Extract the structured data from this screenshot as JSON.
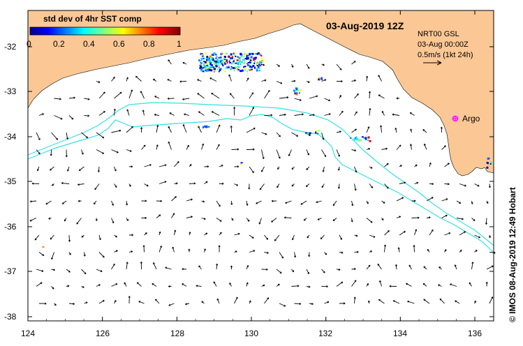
{
  "map": {
    "date_label": "03-Aug-2019 12Z",
    "colorbar_title": "std dev of 4hr SST comp",
    "colorbar_ticks": [
      "0",
      "0.2",
      "0.4",
      "0.6",
      "0.8",
      "1"
    ],
    "info_lines": [
      "NRT00 GSL",
      "03-Aug 00:00Z",
      "0.5m/s (1kt 24h)"
    ],
    "argo_label": "Argo",
    "credit": "© IMOS 08-Aug-2019 12:49 Hobart",
    "x_ticks": [
      "124",
      "126",
      "128",
      "130",
      "132",
      "134",
      "136"
    ],
    "y_ticks": [
      "-32",
      "-33",
      "-34",
      "-35",
      "-36",
      "-37",
      "-38"
    ],
    "colors": {
      "land": "#fbc895",
      "contour": "#33e0e8",
      "argo": "#ff00ff",
      "arrow": "#000000"
    }
  }
}
